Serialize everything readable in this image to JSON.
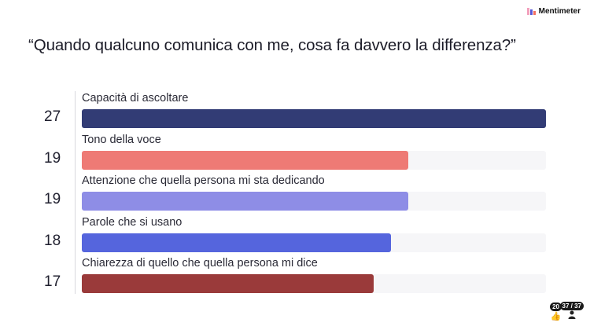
{
  "brand": {
    "name": "Mentimeter",
    "logo_icon": "mentimeter-logo-icon"
  },
  "question": "“Quando qualcuno comunica con me, cosa fa davvero la differenza?”",
  "chart_data": {
    "type": "bar",
    "orientation": "horizontal",
    "categories": [
      "Capacità di ascoltare",
      "Tono della voce",
      "Attenzione che quella persona mi sta dedicando",
      "Parole che si usano",
      "Chiarezza di quello che quella persona mi dice"
    ],
    "values": [
      27,
      19,
      19,
      18,
      17
    ],
    "value_labels": [
      "27",
      "19",
      "19",
      "18",
      "17"
    ],
    "colors": [
      "#323c75",
      "#ee7a75",
      "#8e8de6",
      "#5565dd",
      "#9a3a3a"
    ],
    "title": "",
    "xlim": [
      0,
      27
    ],
    "grid": false,
    "legend": "none"
  },
  "footer": {
    "reactions": {
      "count": "20",
      "icon": "thumbs-up-icon"
    },
    "participants": {
      "count": "37 / 37",
      "icon": "person-icon"
    }
  }
}
